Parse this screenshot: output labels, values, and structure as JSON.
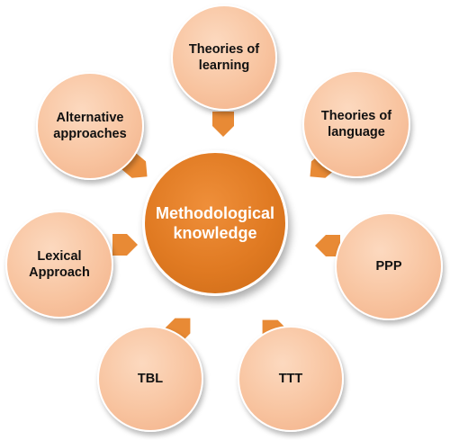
{
  "center": {
    "label": "Methodological\nknowledge"
  },
  "nodes": [
    {
      "label": "Theories of\nlearning"
    },
    {
      "label": "Theories of\nlanguage"
    },
    {
      "label": "PPP"
    },
    {
      "label": "TTT"
    },
    {
      "label": "TBL"
    },
    {
      "label": "Lexical\nApproach"
    },
    {
      "label": "Alternative\napproaches"
    }
  ],
  "colors": {
    "center_fill": "#e07a22",
    "node_fill": "#f8c4a0",
    "arrow_fill": "#e88a35",
    "label_dark": "#111111",
    "label_light": "#ffffff"
  }
}
